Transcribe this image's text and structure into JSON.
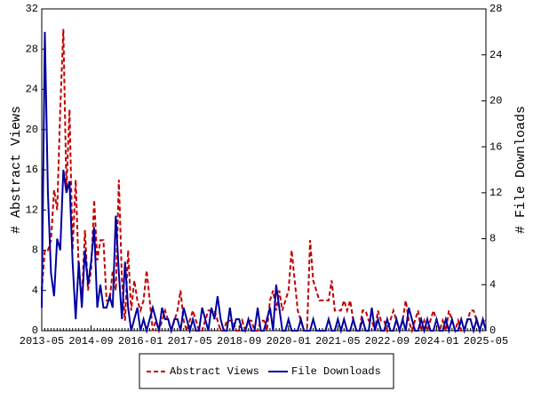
{
  "chart_data": {
    "type": "line",
    "ylabel": "# Abstract Views",
    "y2label": "# File Downloads",
    "x": [
      "2013-05",
      "2013-06",
      "2013-07",
      "2013-08",
      "2013-09",
      "2013-10",
      "2013-11",
      "2013-12",
      "2014-01",
      "2014-02",
      "2014-03",
      "2014-04",
      "2014-05",
      "2014-06",
      "2014-07",
      "2014-08",
      "2014-09",
      "2014-10",
      "2014-11",
      "2014-12",
      "2015-01",
      "2015-02",
      "2015-03",
      "2015-04",
      "2015-05",
      "2015-06",
      "2015-07",
      "2015-08",
      "2015-09",
      "2015-10",
      "2015-11",
      "2015-12",
      "2016-01",
      "2016-02",
      "2016-03",
      "2016-04",
      "2016-05",
      "2016-06",
      "2016-07",
      "2016-08",
      "2016-09",
      "2016-10",
      "2016-11",
      "2016-12",
      "2017-01",
      "2017-02",
      "2017-03",
      "2017-04",
      "2017-05",
      "2017-06",
      "2017-07",
      "2017-08",
      "2017-09",
      "2017-10",
      "2017-11",
      "2017-12",
      "2018-01",
      "2018-02",
      "2018-03",
      "2018-04",
      "2018-05",
      "2018-06",
      "2018-07",
      "2018-08",
      "2018-09",
      "2018-10",
      "2018-11",
      "2018-12",
      "2019-01",
      "2019-02",
      "2019-03",
      "2019-04",
      "2019-05",
      "2019-06",
      "2019-07",
      "2019-08",
      "2019-09",
      "2019-10",
      "2019-11",
      "2019-12",
      "2020-01",
      "2020-02",
      "2020-03",
      "2020-04",
      "2020-05",
      "2020-06",
      "2020-07",
      "2020-08",
      "2020-09",
      "2020-10",
      "2020-11",
      "2020-12",
      "2021-01",
      "2021-02",
      "2021-03",
      "2021-04",
      "2021-05",
      "2021-06",
      "2021-07",
      "2021-08",
      "2021-09",
      "2021-10",
      "2021-11",
      "2021-12",
      "2022-01",
      "2022-02",
      "2022-03",
      "2022-04",
      "2022-05",
      "2022-06",
      "2022-07",
      "2022-08",
      "2022-09",
      "2022-10",
      "2022-11",
      "2022-12",
      "2023-01",
      "2023-02",
      "2023-03",
      "2023-04",
      "2023-05",
      "2023-06",
      "2023-07",
      "2023-08",
      "2023-09",
      "2023-10",
      "2023-11",
      "2023-12",
      "2024-01",
      "2024-02",
      "2024-03",
      "2024-04",
      "2024-05",
      "2024-06",
      "2024-07",
      "2024-08",
      "2024-09",
      "2024-10",
      "2024-11",
      "2024-12",
      "2025-01",
      "2025-02",
      "2025-03",
      "2025-04",
      "2025-05"
    ],
    "xticks": [
      "2013-05",
      "2014-09",
      "2016-01",
      "2017-05",
      "2018-09",
      "2020-01",
      "2021-05",
      "2022-09",
      "2024-01",
      "2025-05"
    ],
    "ylim": [
      0,
      32
    ],
    "yticks": [
      0,
      4,
      8,
      12,
      16,
      20,
      24,
      28,
      32
    ],
    "y2lim": [
      0,
      28
    ],
    "y2ticks": [
      0,
      4,
      8,
      12,
      16,
      20,
      24,
      28
    ],
    "legend": "bottom",
    "series": [
      {
        "name": "Abstract Views",
        "color": "#c00000",
        "style": "dashed",
        "values": [
          4,
          8,
          8,
          9,
          14,
          12,
          22,
          30,
          14,
          22,
          8,
          15,
          6,
          3,
          10,
          4,
          6,
          13,
          7,
          9,
          9,
          3,
          3,
          6,
          4,
          15,
          5,
          1,
          8,
          2,
          5,
          3,
          2,
          3,
          6,
          3,
          0,
          1,
          0,
          1,
          2,
          1,
          0,
          1,
          2,
          4,
          1,
          0,
          1,
          2,
          1,
          0,
          0,
          1,
          2,
          2,
          2,
          1,
          0,
          0,
          1,
          1,
          1,
          0,
          0,
          1,
          0,
          1,
          1,
          0,
          0,
          1,
          1,
          0,
          3,
          4,
          2,
          4,
          2,
          3,
          4,
          8,
          5,
          2,
          1,
          0,
          0,
          9,
          5,
          4,
          3,
          3,
          3,
          3,
          5,
          2,
          2,
          2,
          3,
          2,
          3,
          1,
          0,
          0,
          2,
          2,
          1,
          1,
          0,
          2,
          1,
          1,
          0,
          1,
          2,
          1,
          0,
          1,
          3,
          1,
          0,
          1,
          2,
          0,
          1,
          0,
          1,
          2,
          1,
          0,
          1,
          0,
          2,
          1,
          0,
          1,
          0,
          0,
          1,
          2,
          2,
          1,
          0,
          1,
          1
        ]
      },
      {
        "name": "File Downloads",
        "color": "#0000a0",
        "style": "solid",
        "axis": "y2",
        "values": [
          2,
          26,
          12,
          5,
          3,
          8,
          7,
          14,
          12,
          13,
          6,
          1,
          6,
          2,
          7,
          4,
          6,
          9,
          2,
          4,
          2,
          2,
          3,
          2,
          10,
          5,
          1,
          6,
          2,
          0,
          1,
          2,
          0,
          1,
          0,
          1,
          2,
          1,
          0,
          2,
          1,
          1,
          0,
          1,
          1,
          0,
          2,
          1,
          0,
          1,
          0,
          0,
          2,
          1,
          0,
          2,
          1,
          3,
          1,
          0,
          0,
          2,
          0,
          1,
          1,
          0,
          0,
          1,
          0,
          0,
          2,
          0,
          0,
          1,
          2,
          0,
          4,
          2,
          0,
          0,
          1,
          0,
          0,
          0,
          1,
          0,
          0,
          0,
          1,
          0,
          0,
          0,
          0,
          1,
          0,
          0,
          1,
          0,
          1,
          0,
          0,
          1,
          0,
          0,
          1,
          0,
          0,
          2,
          0,
          1,
          0,
          0,
          1,
          0,
          0,
          1,
          0,
          1,
          0,
          2,
          1,
          0,
          0,
          1,
          0,
          1,
          0,
          0,
          1,
          0,
          0,
          1,
          0,
          1,
          0,
          0,
          1,
          0,
          1,
          1,
          0,
          1,
          0,
          1,
          0
        ]
      }
    ]
  }
}
